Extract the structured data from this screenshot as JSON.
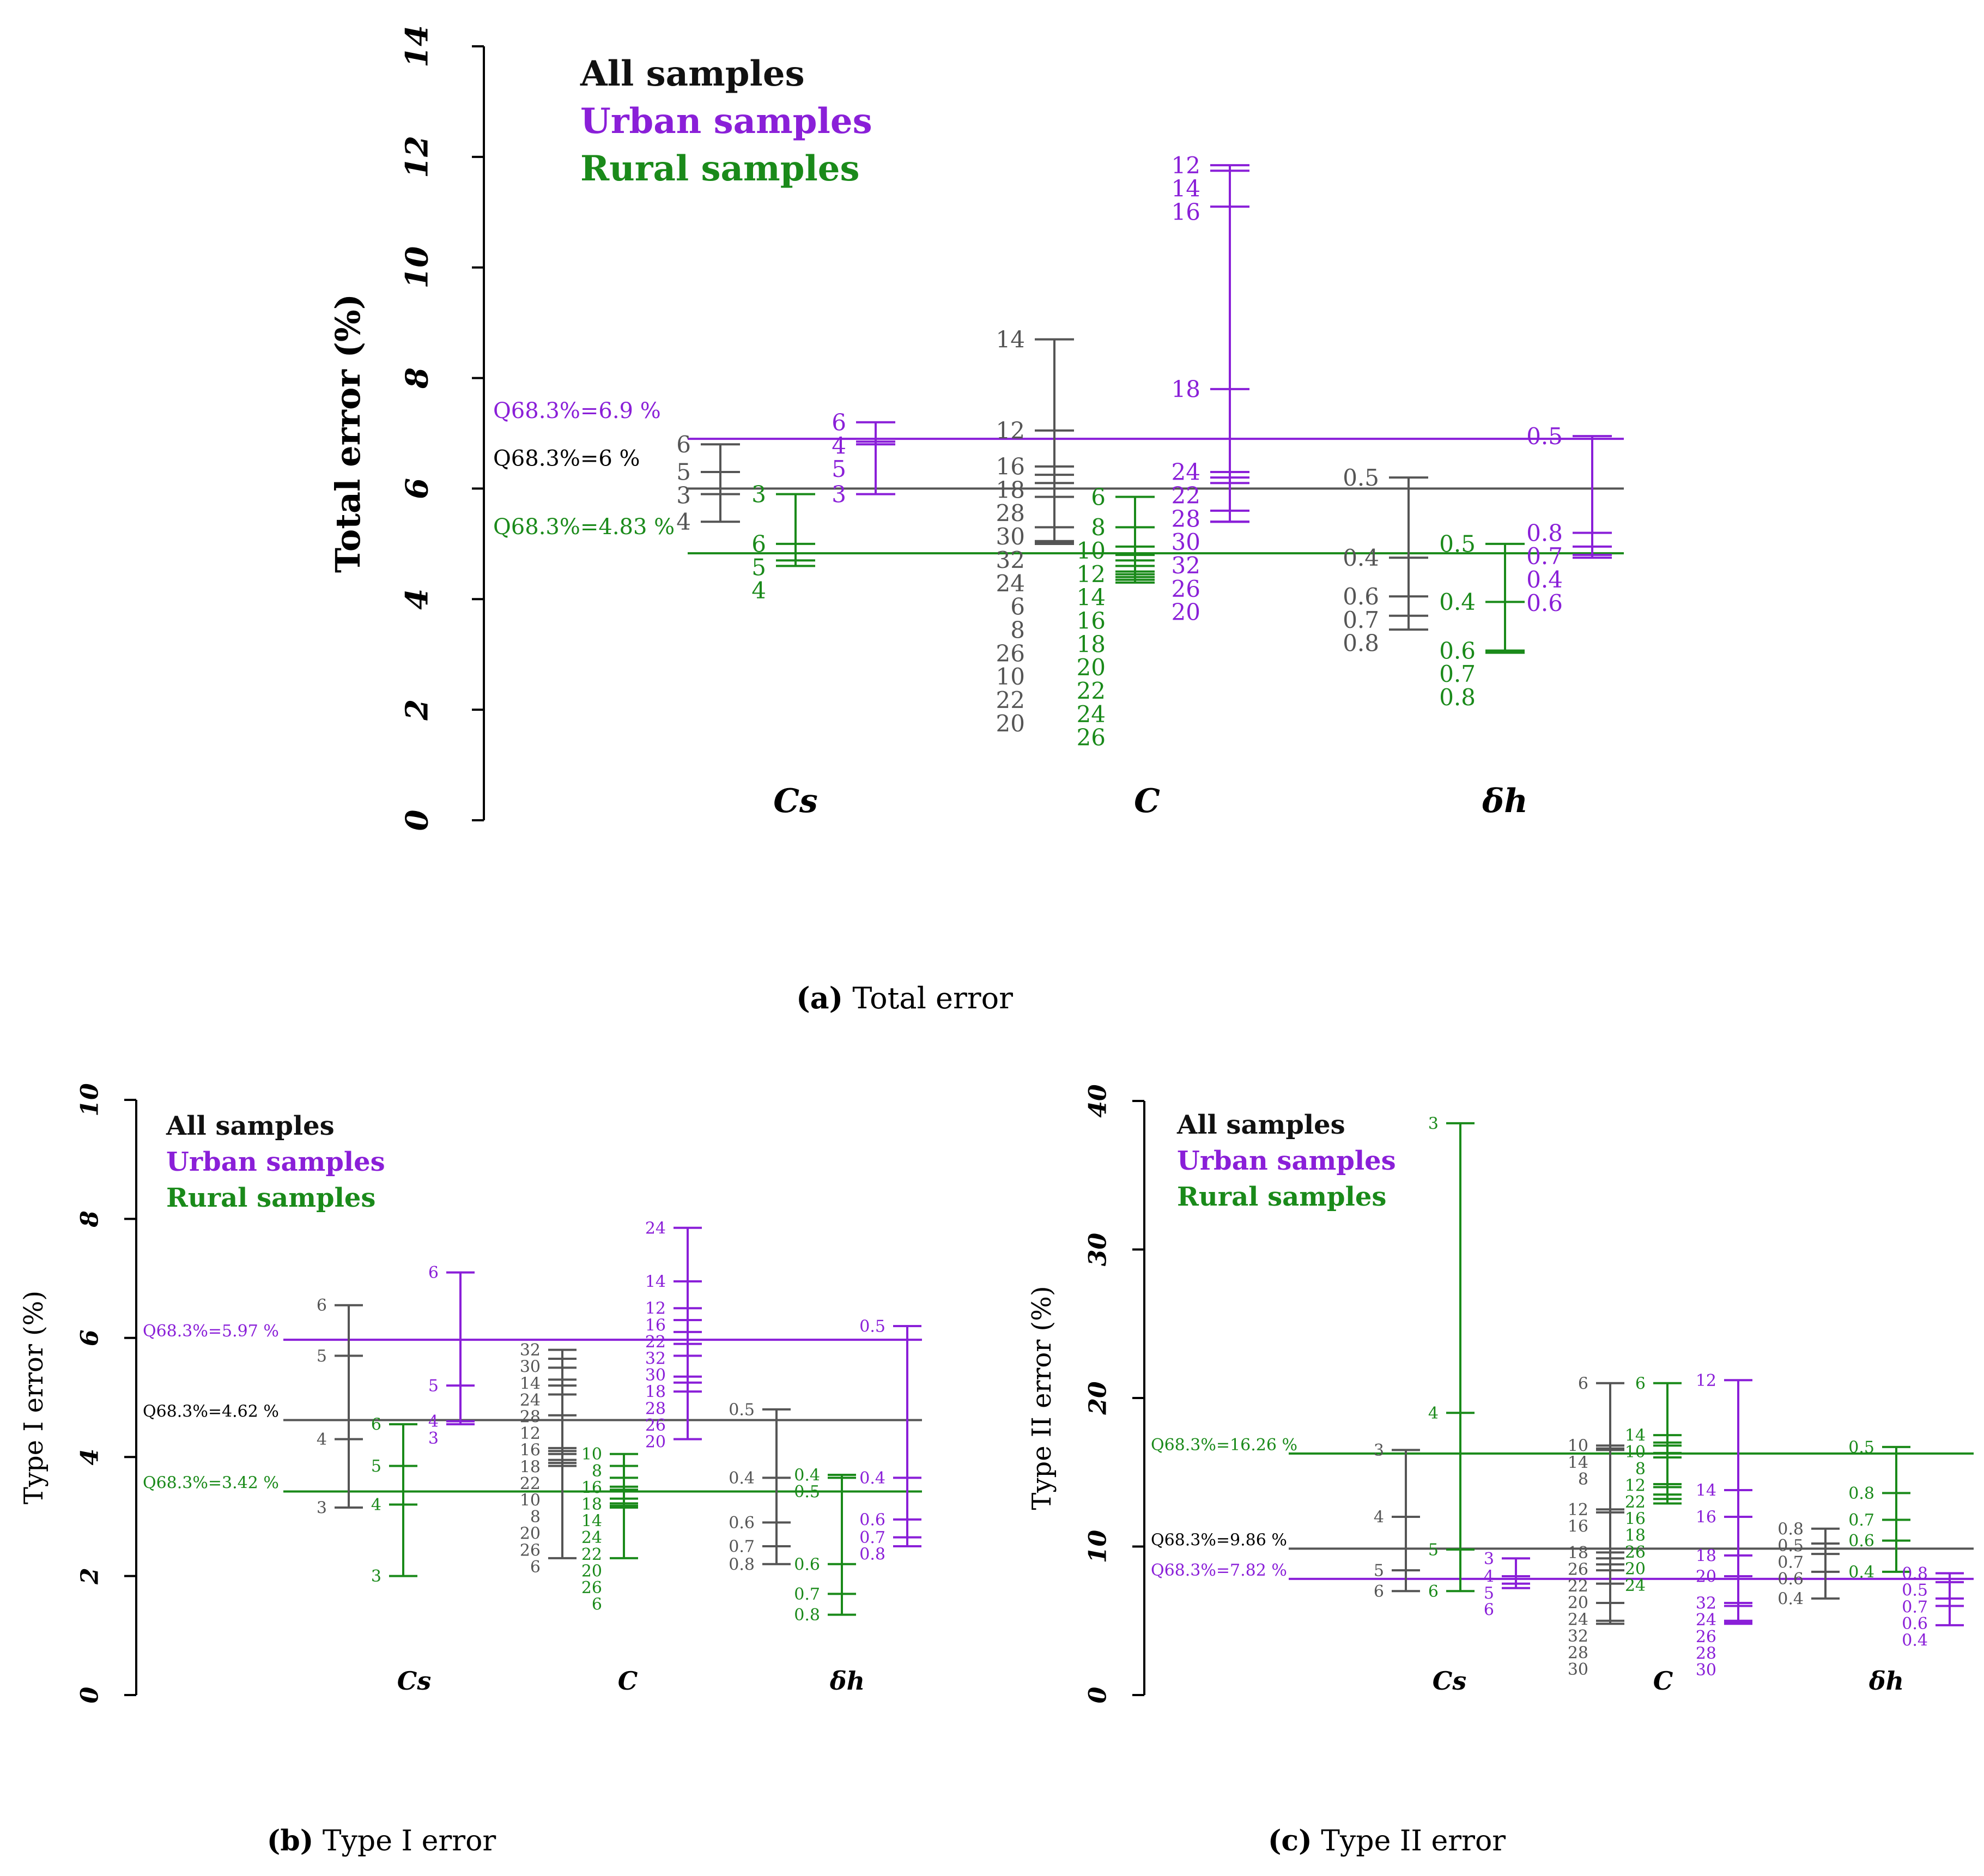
{
  "colors": {
    "all": "#555555",
    "urban": "#8a1fd8",
    "rural": "#1a8a1a",
    "legend_all": "#111111"
  },
  "chart_data": [
    {
      "id": "a",
      "type": "errorbar",
      "caption_letter": "(a)",
      "caption_text": "Total error",
      "ylabel": "Total error (%)",
      "ylim": [
        0,
        14
      ],
      "yticks": [
        "0",
        "2",
        "4",
        "6",
        "8",
        "10",
        "12",
        "14"
      ],
      "groups": [
        "Cs",
        "C",
        "δh"
      ],
      "legend": [
        "All samples",
        "Urban samples",
        "Rural samples"
      ],
      "refs": [
        {
          "label": "Q68.3%=6.9 %",
          "value": 6.9,
          "color": "urban"
        },
        {
          "label": "Q68.3%=6 %",
          "value": 6.0,
          "color": "all"
        },
        {
          "label": "Q68.3%=4.83 %",
          "value": 4.83,
          "color": "rural"
        }
      ],
      "series": [
        {
          "group": 0,
          "color": "all",
          "ticks": [
            [
              6.8,
              "6"
            ],
            [
              6.3,
              "5"
            ],
            [
              5.9,
              "3"
            ],
            [
              5.4,
              "4"
            ]
          ]
        },
        {
          "group": 0,
          "color": "urban",
          "ticks": [
            [
              7.2,
              "6"
            ],
            [
              6.85,
              "4"
            ],
            [
              6.8,
              "5"
            ],
            [
              5.9,
              "3"
            ]
          ]
        },
        {
          "group": 0,
          "color": "rural",
          "ticks": [
            [
              5.9,
              "3"
            ],
            [
              5.0,
              "6"
            ],
            [
              4.7,
              "5"
            ],
            [
              4.6,
              "4"
            ]
          ]
        },
        {
          "group": 1,
          "color": "all",
          "ticks": [
            [
              8.7,
              "14"
            ],
            [
              7.05,
              "12"
            ],
            [
              6.4,
              "16"
            ],
            [
              6.25,
              "18"
            ],
            [
              6.1,
              "28"
            ],
            [
              5.85,
              "30"
            ],
            [
              5.3,
              "32"
            ],
            [
              5.05,
              "24"
            ],
            [
              5.03,
              "6"
            ],
            [
              5.01,
              "8"
            ],
            [
              5.0,
              "26"
            ],
            [
              5.0,
              "10"
            ],
            [
              5.0,
              "22"
            ],
            [
              5.0,
              "20"
            ]
          ]
        },
        {
          "group": 1,
          "color": "urban",
          "ticks": [
            [
              11.85,
              "12"
            ],
            [
              11.75,
              "14"
            ],
            [
              11.1,
              "16"
            ],
            [
              7.8,
              "18"
            ],
            [
              6.3,
              "24"
            ],
            [
              6.2,
              "22"
            ],
            [
              6.1,
              "28"
            ],
            [
              5.6,
              "30"
            ],
            [
              5.4,
              "32"
            ],
            [
              5.4,
              "26"
            ],
            [
              5.4,
              "20"
            ]
          ]
        },
        {
          "group": 1,
          "color": "rural",
          "ticks": [
            [
              5.85,
              "6"
            ],
            [
              5.3,
              "8"
            ],
            [
              4.95,
              "10"
            ],
            [
              4.8,
              "12"
            ],
            [
              4.7,
              "14"
            ],
            [
              4.6,
              "16"
            ],
            [
              4.5,
              "18"
            ],
            [
              4.45,
              "20"
            ],
            [
              4.4,
              "22"
            ],
            [
              4.35,
              "24"
            ],
            [
              4.3,
              "26"
            ]
          ]
        },
        {
          "group": 2,
          "color": "all",
          "ticks": [
            [
              6.2,
              "0.5"
            ],
            [
              4.75,
              "0.4"
            ],
            [
              4.05,
              "0.6"
            ],
            [
              3.7,
              "0.7"
            ],
            [
              3.45,
              "0.8"
            ]
          ]
        },
        {
          "group": 2,
          "color": "urban",
          "ticks": [
            [
              6.95,
              "0.5"
            ],
            [
              5.2,
              "0.8"
            ],
            [
              4.95,
              "0.7"
            ],
            [
              4.8,
              "0.4"
            ],
            [
              4.75,
              "0.6"
            ]
          ]
        },
        {
          "group": 2,
          "color": "rural",
          "ticks": [
            [
              5.0,
              "0.5"
            ],
            [
              3.95,
              "0.4"
            ],
            [
              3.07,
              "0.6"
            ],
            [
              3.05,
              "0.7"
            ],
            [
              3.03,
              "0.8"
            ]
          ]
        }
      ]
    },
    {
      "id": "b",
      "type": "errorbar",
      "caption_letter": "(b)",
      "caption_text": "Type I error",
      "ylabel": "Type I error (%)",
      "ylim": [
        0,
        10
      ],
      "yticks": [
        "0",
        "2",
        "4",
        "6",
        "8",
        "10"
      ],
      "groups": [
        "Cs",
        "C",
        "δh"
      ],
      "legend": [
        "All samples",
        "Urban samples",
        "Rural samples"
      ],
      "refs": [
        {
          "label": "Q68.3%=5.97 %",
          "value": 5.97,
          "color": "urban"
        },
        {
          "label": "Q68.3%=4.62 %",
          "value": 4.62,
          "color": "all"
        },
        {
          "label": "Q68.3%=3.42 %",
          "value": 3.42,
          "color": "rural"
        }
      ],
      "series": [
        {
          "group": 0,
          "color": "all",
          "ticks": [
            [
              6.55,
              "6"
            ],
            [
              5.7,
              "5"
            ],
            [
              4.3,
              "4"
            ],
            [
              3.15,
              "3"
            ]
          ]
        },
        {
          "group": 0,
          "color": "urban",
          "ticks": [
            [
              7.1,
              "6"
            ],
            [
              5.2,
              "5"
            ],
            [
              4.6,
              "4"
            ],
            [
              4.55,
              "3"
            ]
          ]
        },
        {
          "group": 0,
          "color": "rural",
          "ticks": [
            [
              4.55,
              "6"
            ],
            [
              3.85,
              "5"
            ],
            [
              3.2,
              "4"
            ],
            [
              2.0,
              "3"
            ]
          ]
        },
        {
          "group": 1,
          "color": "all",
          "ticks": [
            [
              5.8,
              "32"
            ],
            [
              5.65,
              "30"
            ],
            [
              5.5,
              "14"
            ],
            [
              5.3,
              "24"
            ],
            [
              5.2,
              "28"
            ],
            [
              5.05,
              "12"
            ],
            [
              4.7,
              "16"
            ],
            [
              4.15,
              "18"
            ],
            [
              4.1,
              "22"
            ],
            [
              4.05,
              "10"
            ],
            [
              3.95,
              "8"
            ],
            [
              3.9,
              "20"
            ],
            [
              3.85,
              "26"
            ],
            [
              2.3,
              "6"
            ]
          ]
        },
        {
          "group": 1,
          "color": "urban",
          "ticks": [
            [
              7.85,
              "24"
            ],
            [
              6.95,
              "14"
            ],
            [
              6.5,
              "12"
            ],
            [
              6.3,
              "16"
            ],
            [
              6.1,
              "22"
            ],
            [
              5.9,
              "32"
            ],
            [
              5.7,
              "30"
            ],
            [
              5.35,
              "18"
            ],
            [
              5.25,
              "28"
            ],
            [
              5.1,
              "26"
            ],
            [
              4.3,
              "20"
            ]
          ]
        },
        {
          "group": 1,
          "color": "rural",
          "ticks": [
            [
              4.05,
              "10"
            ],
            [
              3.85,
              "8"
            ],
            [
              3.65,
              "16"
            ],
            [
              3.5,
              "18"
            ],
            [
              3.45,
              "14"
            ],
            [
              3.3,
              "24"
            ],
            [
              3.22,
              "22"
            ],
            [
              3.18,
              "20"
            ],
            [
              3.15,
              "26"
            ],
            [
              2.3,
              "6"
            ]
          ]
        },
        {
          "group": 2,
          "color": "all",
          "ticks": [
            [
              4.8,
              "0.5"
            ],
            [
              3.65,
              "0.4"
            ],
            [
              2.9,
              "0.6"
            ],
            [
              2.5,
              "0.7"
            ],
            [
              2.2,
              "0.8"
            ]
          ]
        },
        {
          "group": 2,
          "color": "urban",
          "ticks": [
            [
              6.2,
              "0.5"
            ],
            [
              3.65,
              "0.4"
            ],
            [
              2.95,
              "0.6"
            ],
            [
              2.65,
              "0.7"
            ],
            [
              2.5,
              "0.8"
            ]
          ]
        },
        {
          "group": 2,
          "color": "rural",
          "ticks": [
            [
              3.7,
              "0.4"
            ],
            [
              3.65,
              "0.5"
            ],
            [
              2.2,
              "0.6"
            ],
            [
              1.7,
              "0.7"
            ],
            [
              1.35,
              "0.8"
            ]
          ]
        }
      ]
    },
    {
      "id": "c",
      "type": "errorbar",
      "caption_letter": "(c)",
      "caption_text": "Type II error",
      "ylabel": "Type II error (%)",
      "ylim": [
        0,
        40
      ],
      "yticks": [
        "0",
        "10",
        "20",
        "30",
        "40"
      ],
      "groups": [
        "Cs",
        "C",
        "δh"
      ],
      "legend": [
        "All samples",
        "Urban samples",
        "Rural samples"
      ],
      "refs": [
        {
          "label": "Q68.3%=16.26 %",
          "value": 16.26,
          "color": "rural"
        },
        {
          "label": "Q68.3%=9.86 %",
          "value": 9.86,
          "color": "all"
        },
        {
          "label": "Q68.3%=7.82 %",
          "value": 7.82,
          "color": "urban"
        }
      ],
      "series": [
        {
          "group": 0,
          "color": "all",
          "ticks": [
            [
              16.5,
              "3"
            ],
            [
              12.0,
              "4"
            ],
            [
              8.4,
              "5"
            ],
            [
              7.0,
              "6"
            ]
          ]
        },
        {
          "group": 0,
          "color": "rural",
          "ticks": [
            [
              38.5,
              "3"
            ],
            [
              19.0,
              "4"
            ],
            [
              9.8,
              "5"
            ],
            [
              7.0,
              "6"
            ]
          ]
        },
        {
          "group": 0,
          "color": "urban",
          "ticks": [
            [
              9.2,
              "3"
            ],
            [
              8.0,
              "4"
            ],
            [
              7.5,
              "5"
            ],
            [
              7.2,
              "6"
            ]
          ]
        },
        {
          "group": 1,
          "color": "all",
          "ticks": [
            [
              21.0,
              "6"
            ],
            [
              16.8,
              "10"
            ],
            [
              16.6,
              "14"
            ],
            [
              16.5,
              "8"
            ],
            [
              12.5,
              "12"
            ],
            [
              12.3,
              "16"
            ],
            [
              9.6,
              "18"
            ],
            [
              9.2,
              "26"
            ],
            [
              8.8,
              "22"
            ],
            [
              8.4,
              "20"
            ],
            [
              7.5,
              "24"
            ],
            [
              6.2,
              "32"
            ],
            [
              5.0,
              "28"
            ],
            [
              4.8,
              "30"
            ]
          ]
        },
        {
          "group": 1,
          "color": "rural",
          "ticks": [
            [
              21.0,
              "6"
            ],
            [
              17.5,
              "14"
            ],
            [
              17.0,
              "10"
            ],
            [
              16.8,
              "8"
            ],
            [
              16.3,
              "12"
            ],
            [
              16.0,
              "22"
            ],
            [
              14.2,
              "16"
            ],
            [
              14.0,
              "18"
            ],
            [
              13.5,
              "26"
            ],
            [
              13.2,
              "20"
            ],
            [
              12.9,
              "24"
            ]
          ]
        },
        {
          "group": 1,
          "color": "urban",
          "ticks": [
            [
              21.2,
              "12"
            ],
            [
              13.8,
              "14"
            ],
            [
              12.0,
              "16"
            ],
            [
              9.4,
              "18"
            ],
            [
              8.0,
              "20"
            ],
            [
              6.2,
              "32"
            ],
            [
              6.0,
              "24"
            ],
            [
              5.0,
              "26"
            ],
            [
              4.9,
              "28"
            ],
            [
              4.8,
              "30"
            ]
          ]
        },
        {
          "group": 2,
          "color": "all",
          "ticks": [
            [
              11.2,
              "0.8"
            ],
            [
              10.2,
              "0.5"
            ],
            [
              9.5,
              "0.7"
            ],
            [
              8.3,
              "0.6"
            ],
            [
              6.5,
              "0.4"
            ]
          ]
        },
        {
          "group": 2,
          "color": "rural",
          "ticks": [
            [
              16.7,
              "0.5"
            ],
            [
              13.6,
              "0.8"
            ],
            [
              11.8,
              "0.7"
            ],
            [
              10.4,
              "0.6"
            ],
            [
              8.3,
              "0.4"
            ]
          ]
        },
        {
          "group": 2,
          "color": "urban",
          "ticks": [
            [
              8.2,
              "0.8"
            ],
            [
              7.6,
              "0.5"
            ],
            [
              6.5,
              "0.7"
            ],
            [
              6.0,
              "0.6"
            ],
            [
              4.7,
              "0.4"
            ]
          ]
        }
      ]
    }
  ]
}
